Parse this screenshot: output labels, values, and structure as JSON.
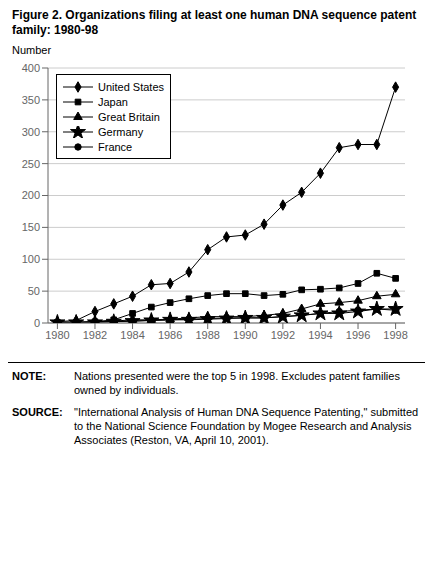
{
  "chart_data": {
    "type": "line",
    "title": "Figure 2. Organizations filing at least one human DNA sequence patent family: 1980-98",
    "y_label": "Number",
    "x": [
      1980,
      1981,
      1982,
      1983,
      1984,
      1985,
      1986,
      1987,
      1988,
      1989,
      1990,
      1991,
      1992,
      1993,
      1994,
      1995,
      1996,
      1997,
      1998
    ],
    "series": [
      {
        "name": "United States",
        "color": "#000000",
        "marker": "diamond",
        "values": [
          2,
          4,
          18,
          30,
          42,
          60,
          62,
          80,
          115,
          135,
          138,
          155,
          185,
          205,
          235,
          275,
          280,
          280,
          370
        ]
      },
      {
        "name": "Japan",
        "color": "#000000",
        "marker": "square",
        "values": [
          1,
          1,
          2,
          5,
          15,
          25,
          32,
          38,
          43,
          46,
          46,
          43,
          45,
          52,
          53,
          55,
          62,
          78,
          70
        ]
      },
      {
        "name": "Great Britain",
        "color": "#000000",
        "marker": "triangle",
        "values": [
          1,
          1,
          2,
          3,
          5,
          5,
          6,
          8,
          10,
          10,
          10,
          12,
          15,
          22,
          30,
          32,
          35,
          42,
          45
        ]
      },
      {
        "name": "Germany",
        "color": "#000000",
        "marker": "star",
        "values": [
          1,
          1,
          1,
          2,
          3,
          4,
          5,
          5,
          6,
          7,
          8,
          8,
          10,
          12,
          15,
          15,
          18,
          22,
          22
        ]
      },
      {
        "name": "France",
        "color": "#000000",
        "marker": "circle",
        "values": [
          1,
          1,
          2,
          2,
          3,
          4,
          5,
          6,
          7,
          8,
          8,
          8,
          10,
          12,
          15,
          18,
          20,
          22,
          20
        ]
      }
    ],
    "xlim": [
      1979.5,
      1998.5
    ],
    "ylim": [
      0,
      400
    ],
    "xticks": [
      1980,
      1982,
      1984,
      1986,
      1988,
      1990,
      1992,
      1994,
      1996,
      1998
    ],
    "yticks": [
      0,
      50,
      100,
      150,
      200,
      250,
      300,
      350,
      400
    ],
    "grid": "y",
    "legend": "upper left",
    "annotations": [
      {
        "label": "NOTE:",
        "text": "Nations presented were the top 5 in 1998. Excludes patent families owned by individuals."
      },
      {
        "label": "SOURCE:",
        "text": "\"International Analysis of Human DNA Sequence Patenting,\" submitted to the National Science Foundation by Mogee Research and Analysis Associates (Reston, VA, April 10, 2001)."
      }
    ]
  }
}
